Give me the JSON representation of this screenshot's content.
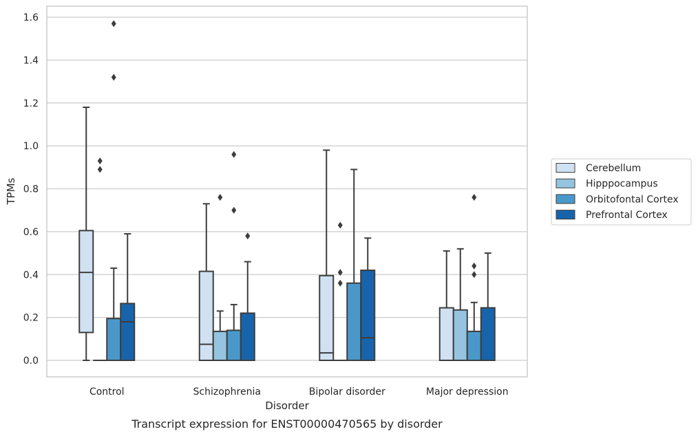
{
  "chart_data": {
    "type": "box",
    "caption": "Transcript expression for ENST00000470565 by disorder",
    "xlabel": "Disorder",
    "ylabel": "TPMs",
    "ylim": [
      -0.075,
      1.65
    ],
    "yticks": [
      "0.0",
      "0.2",
      "0.4",
      "0.6",
      "0.8",
      "1.0",
      "1.2",
      "1.4",
      "1.6"
    ],
    "grid": true,
    "legend_position": "right",
    "categories": [
      "Control",
      "Schizophrenia",
      "Bipolar disorder",
      "Major depression"
    ],
    "series": [
      {
        "name": "Cerebellum",
        "color": "#d0e1f2",
        "boxes": [
          {
            "q1": 0.13,
            "median": 0.41,
            "q3": 0.605,
            "whisker_low": 0.0,
            "whisker_high": 1.18,
            "outliers": []
          },
          {
            "q1": 0.0,
            "median": 0.075,
            "q3": 0.415,
            "whisker_low": 0.0,
            "whisker_high": 0.73,
            "outliers": []
          },
          {
            "q1": 0.0,
            "median": 0.035,
            "q3": 0.395,
            "whisker_low": 0.0,
            "whisker_high": 0.98,
            "outliers": []
          },
          {
            "q1": 0.0,
            "median": 0.0,
            "q3": 0.245,
            "whisker_low": 0.0,
            "whisker_high": 0.51,
            "outliers": []
          }
        ]
      },
      {
        "name": "Hipppocampus",
        "color": "#94c4df",
        "boxes": [
          {
            "q1": 0.0,
            "median": 0.0,
            "q3": 0.0,
            "whisker_low": 0.0,
            "whisker_high": 0.0,
            "outliers": [
              0.89,
              0.93
            ]
          },
          {
            "q1": 0.0,
            "median": 0.0,
            "q3": 0.135,
            "whisker_low": 0.0,
            "whisker_high": 0.23,
            "outliers": [
              0.76
            ]
          },
          {
            "q1": 0.0,
            "median": 0.0,
            "q3": 0.0,
            "whisker_low": 0.0,
            "whisker_high": 0.0,
            "outliers": [
              0.36,
              0.41,
              0.63
            ]
          },
          {
            "q1": 0.0,
            "median": 0.0,
            "q3": 0.235,
            "whisker_low": 0.0,
            "whisker_high": 0.52,
            "outliers": []
          }
        ]
      },
      {
        "name": "Orbitofontal Cortex",
        "color": "#4a98c9",
        "boxes": [
          {
            "q1": 0.0,
            "median": 0.0,
            "q3": 0.195,
            "whisker_low": 0.0,
            "whisker_high": 0.43,
            "outliers": [
              1.32,
              1.57
            ]
          },
          {
            "q1": 0.0,
            "median": 0.0,
            "q3": 0.14,
            "whisker_low": 0.0,
            "whisker_high": 0.26,
            "outliers": [
              0.7,
              0.96
            ]
          },
          {
            "q1": 0.0,
            "median": 0.0,
            "q3": 0.36,
            "whisker_low": 0.0,
            "whisker_high": 0.89,
            "outliers": []
          },
          {
            "q1": 0.0,
            "median": 0.0,
            "q3": 0.135,
            "whisker_low": 0.0,
            "whisker_high": 0.27,
            "outliers": [
              0.4,
              0.44,
              0.76
            ]
          }
        ]
      },
      {
        "name": "Prefrontal Cortex",
        "color": "#1764ab",
        "boxes": [
          {
            "q1": 0.0,
            "median": 0.18,
            "q3": 0.265,
            "whisker_low": 0.0,
            "whisker_high": 0.59,
            "outliers": []
          },
          {
            "q1": 0.0,
            "median": 0.0,
            "q3": 0.22,
            "whisker_low": 0.0,
            "whisker_high": 0.46,
            "outliers": [
              0.58
            ]
          },
          {
            "q1": 0.0,
            "median": 0.105,
            "q3": 0.42,
            "whisker_low": 0.0,
            "whisker_high": 0.57,
            "outliers": []
          },
          {
            "q1": 0.0,
            "median": 0.0,
            "q3": 0.245,
            "whisker_low": 0.0,
            "whisker_high": 0.5,
            "outliers": []
          }
        ]
      }
    ]
  }
}
